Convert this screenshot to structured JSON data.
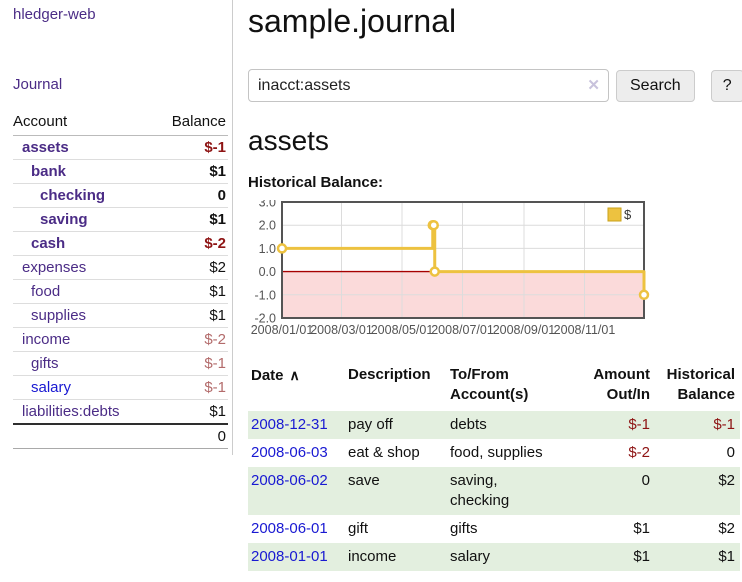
{
  "app": {
    "brand": "hledger-web",
    "nav_journal": "Journal"
  },
  "sidebar": {
    "accounts_table": {
      "col_account": "Account",
      "col_balance": "Balance",
      "rows": [
        {
          "name": "assets",
          "balance": "$-1",
          "indent": 1,
          "bold": true,
          "balance_style": "negdark"
        },
        {
          "name": "bank",
          "balance": "$1",
          "indent": 2,
          "bold": true,
          "balance_style": "pos"
        },
        {
          "name": "checking",
          "balance": "0",
          "indent": 3,
          "bold": true,
          "balance_style": "pos"
        },
        {
          "name": "saving",
          "balance": "$1",
          "indent": 3,
          "bold": true,
          "balance_style": "pos"
        },
        {
          "name": "cash",
          "balance": "$-2",
          "indent": 2,
          "bold": true,
          "balance_style": "negdark"
        },
        {
          "name": "expenses",
          "balance": "$2",
          "indent": 1,
          "bold": false,
          "balance_style": "pos"
        },
        {
          "name": "food",
          "balance": "$1",
          "indent": 2,
          "bold": false,
          "balance_style": "pos"
        },
        {
          "name": "supplies",
          "balance": "$1",
          "indent": 2,
          "bold": false,
          "balance_style": "pos"
        },
        {
          "name": "income",
          "balance": "$-2",
          "indent": 1,
          "bold": false,
          "balance_style": "negrose"
        },
        {
          "name": "gifts",
          "balance": "$-1",
          "indent": 2,
          "bold": false,
          "balance_style": "negrose"
        },
        {
          "name": "salary",
          "balance": "$-1",
          "indent": 2,
          "bold": false,
          "balance_style": "negrose",
          "link_color": "blue"
        },
        {
          "name": "liabilities:debts",
          "balance": "$1",
          "indent": 1,
          "bold": false,
          "balance_style": "pos"
        }
      ],
      "total": "0"
    }
  },
  "header": {
    "title": "sample.journal"
  },
  "search": {
    "value": "inacct:assets",
    "clear_icon": "✕",
    "button_label": "Search",
    "help_label": "?"
  },
  "account_page": {
    "heading": "assets",
    "chart_label": "Historical Balance:"
  },
  "chart_data": {
    "type": "line",
    "title": "Historical Balance",
    "step": true,
    "series": [
      {
        "name": "$",
        "color": "#edc240",
        "points": [
          [
            "2008-01-01",
            1
          ],
          [
            "2008-06-01",
            2
          ],
          [
            "2008-06-02",
            2
          ],
          [
            "2008-06-03",
            0
          ],
          [
            "2008-12-31",
            -1
          ]
        ]
      }
    ],
    "x_ticks": [
      "2008/01/01",
      "2008/03/01",
      "2008/05/01",
      "2008/07/01",
      "2008/09/01",
      "2008/11/01"
    ],
    "y_ticks": [
      "3.0",
      "2.0",
      "1.0",
      "0.0",
      "-1.0",
      "-2.0"
    ],
    "ylim": [
      -2,
      3
    ],
    "legend": {
      "label": "$",
      "position": "top-right"
    },
    "grid": true,
    "colors": {
      "negative_region": "#fbdada",
      "zero_line": "#a60000",
      "border": "#545454",
      "gridline": "#dcdcdc",
      "tick_text": "#545454"
    }
  },
  "register_table": {
    "columns": [
      {
        "label": "Date",
        "sort_icon": "∧",
        "align": "left"
      },
      {
        "label": "Description",
        "align": "left"
      },
      {
        "label": "To/From\nAccount(s)",
        "align": "left"
      },
      {
        "label": "Amount\nOut/In",
        "align": "right"
      },
      {
        "label": "Historical\nBalance",
        "align": "right"
      }
    ],
    "rows": [
      {
        "date": "2008-12-31",
        "description": "pay off",
        "accounts": "debts",
        "amount": "$-1",
        "amount_negative": true,
        "balance": "$-1",
        "balance_negative": true
      },
      {
        "date": "2008-06-03",
        "description": "eat & shop",
        "accounts": "food, supplies",
        "amount": "$-2",
        "amount_negative": true,
        "balance": "0",
        "balance_negative": false
      },
      {
        "date": "2008-06-02",
        "description": "save",
        "accounts": "saving,\nchecking",
        "amount": "0",
        "amount_negative": false,
        "balance": "$2",
        "balance_negative": false
      },
      {
        "date": "2008-06-01",
        "description": "gift",
        "accounts": "gifts",
        "amount": "$1",
        "amount_negative": false,
        "balance": "$2",
        "balance_negative": false
      },
      {
        "date": "2008-01-01",
        "description": "income",
        "accounts": "salary",
        "amount": "$1",
        "amount_negative": false,
        "balance": "$1",
        "balance_negative": false
      }
    ]
  }
}
